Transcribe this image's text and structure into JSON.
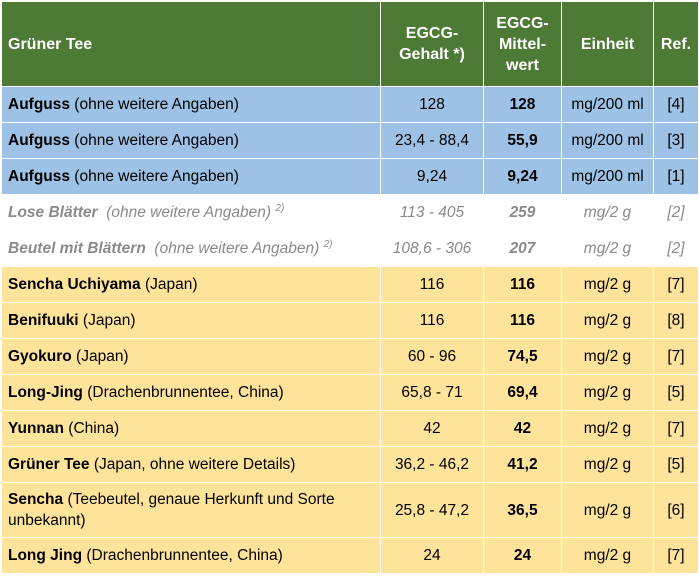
{
  "header": {
    "col1": "Grüner Tee",
    "col2_line1": "EGCG-",
    "col2_line2": "Gehalt *)",
    "col3_line1": "EGCG-",
    "col3_line2": "Mittel-",
    "col3_line3": "wert",
    "col4": "Einheit",
    "col5": "Ref."
  },
  "rows": [
    {
      "name": "Aufguss",
      "detail": " (ohne weitere Angaben)",
      "sup": "",
      "range": "128",
      "mean": "128",
      "unit": "mg/200 ml",
      "ref": "[4]",
      "style": "blue"
    },
    {
      "name": "Aufguss",
      "detail": " (ohne weitere Angaben)",
      "sup": "",
      "range": "23,4 - 88,4",
      "mean": "55,9",
      "unit": "mg/200 ml",
      "ref": "[3]",
      "style": "blue"
    },
    {
      "name": "Aufguss",
      "detail": " (ohne weitere Angaben)",
      "sup": "",
      "range": "9,24",
      "mean": "9,24",
      "unit": "mg/200 ml",
      "ref": "[1]",
      "style": "blue"
    },
    {
      "name": "Lose Blätter",
      "detail": "  (ohne weitere Angaben) ",
      "sup": "2)",
      "range": "113 - 405",
      "mean": "259",
      "unit": "mg/2 g",
      "ref": "[2]",
      "style": "grey"
    },
    {
      "name": "Beutel mit Blättern",
      "detail": "  (ohne weitere Angaben) ",
      "sup": "2)",
      "range": "108,6 - 306",
      "mean": "207",
      "unit": "mg/2 g",
      "ref": "[2]",
      "style": "grey"
    },
    {
      "name": "Sencha Uchiyama",
      "detail": " (Japan)",
      "sup": "",
      "range": "116",
      "mean": "116",
      "unit": "mg/2 g",
      "ref": "[7]",
      "style": "yellow"
    },
    {
      "name": "Benifuuki",
      "detail": " (Japan)",
      "sup": "",
      "range": "116",
      "mean": "116",
      "unit": "mg/2 g",
      "ref": "[8]",
      "style": "yellow"
    },
    {
      "name": "Gyokuro",
      "detail": " (Japan)",
      "sup": "",
      "range": "60 - 96",
      "mean": "74,5",
      "unit": "mg/2 g",
      "ref": "[7]",
      "style": "yellow"
    },
    {
      "name": "Long-Jing",
      "detail": " (Drachenbrunnentee, China)",
      "sup": "",
      "range": "65,8 - 71",
      "mean": "69,4",
      "unit": "mg/2 g",
      "ref": "[5]",
      "style": "yellow"
    },
    {
      "name": "Yunnan",
      "detail": " (China)",
      "sup": "",
      "range": "42",
      "mean": "42",
      "unit": "mg/2 g",
      "ref": "[7]",
      "style": "yellow"
    },
    {
      "name": "Grüner Tee",
      "detail": " (Japan, ohne weitere Details)",
      "sup": "",
      "range": "36,2 - 46,2",
      "mean": "41,2",
      "unit": "mg/2 g",
      "ref": "[5]",
      "style": "yellow"
    },
    {
      "name": "Sencha",
      "detail": " (Teebeutel, genaue Herkunft und Sorte unbekannt)",
      "sup": "",
      "range": "25,8 - 47,2",
      "mean": "36,5",
      "unit": "mg/2 g",
      "ref": "[6]",
      "style": "yellow tall"
    },
    {
      "name": "Long Jing",
      "detail": " (Drachenbrunnentee, China)",
      "sup": "",
      "range": "24",
      "mean": "24",
      "unit": "mg/2 g",
      "ref": "[7]",
      "style": "yellow"
    }
  ]
}
